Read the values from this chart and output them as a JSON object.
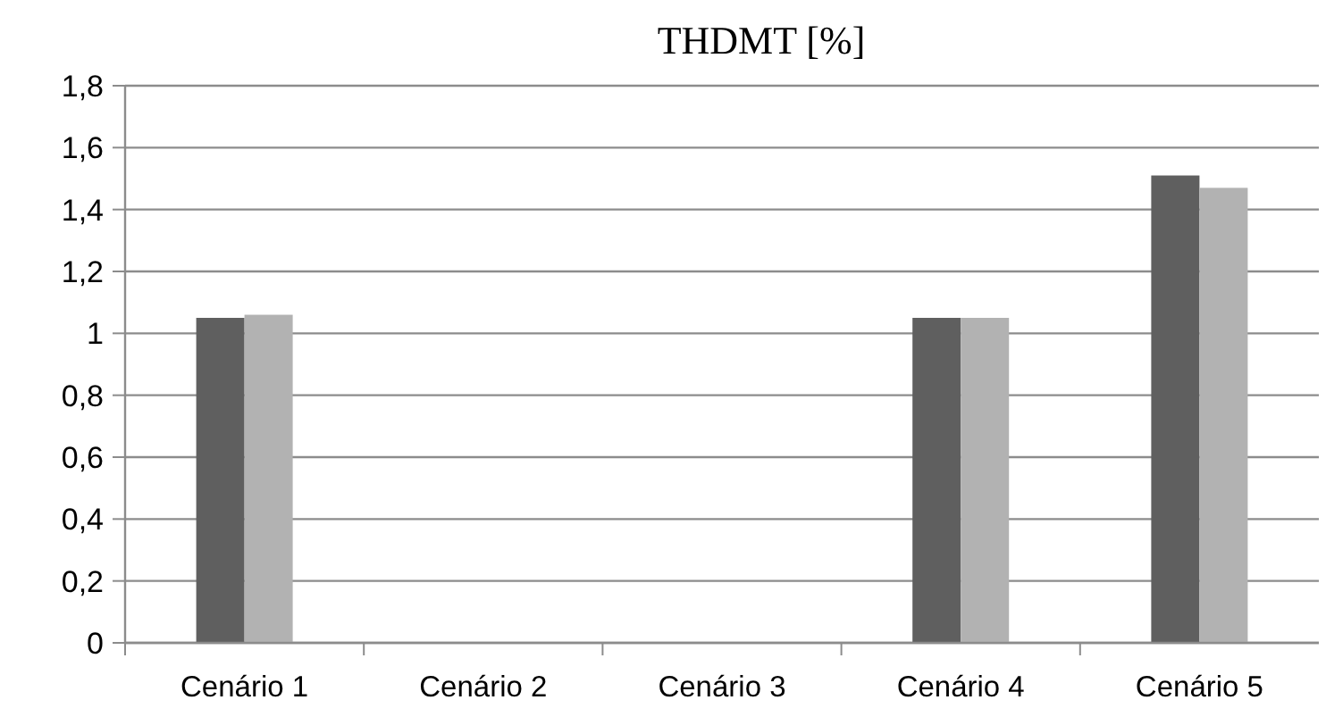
{
  "chart_data": {
    "type": "bar",
    "title": "THDMT [%]",
    "categories": [
      "Cenário 1",
      "Cenário 2",
      "Cenário 3",
      "Cenário 4",
      "Cenário 5"
    ],
    "series": [
      {
        "color": "#5f5f5f",
        "values": [
          1.05,
          null,
          null,
          1.05,
          1.51
        ]
      },
      {
        "color": "#b2b2b2",
        "values": [
          1.06,
          null,
          null,
          1.05,
          1.47
        ]
      }
    ],
    "ylim": [
      0,
      1.8
    ],
    "yticks": [
      0,
      {
        "value": 0.2,
        "label": "0,2"
      },
      {
        "value": 0.4,
        "label": "0,4"
      },
      {
        "value": 0.6,
        "label": "0,6"
      },
      {
        "value": 0.8,
        "label": "0,8"
      },
      1,
      {
        "value": 1.2,
        "label": "1,2"
      },
      {
        "value": 1.4,
        "label": "1,4"
      },
      {
        "value": 1.6,
        "label": "1,6"
      },
      {
        "value": 1.8,
        "label": "1,8"
      }
    ],
    "grid": "y"
  }
}
